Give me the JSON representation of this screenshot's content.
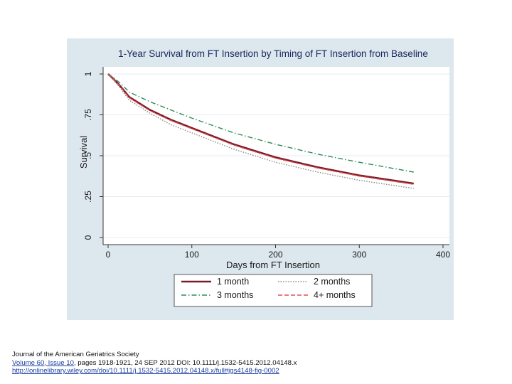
{
  "chart_data": {
    "type": "line",
    "title": "1-Year Survival from FT Insertion by Timing of FT Insertion from Baseline",
    "xlabel": "Days from FT Insertion",
    "ylabel": "Survival",
    "xlim": [
      0,
      400
    ],
    "ylim": [
      0,
      1
    ],
    "xticks": [
      "0",
      "100",
      "200",
      "300",
      "400"
    ],
    "yticks": [
      "0",
      ".25",
      ".5",
      ".75",
      "1"
    ],
    "grid": "horizontal",
    "legend_position": "bottom",
    "x": [
      0,
      25,
      50,
      75,
      100,
      150,
      200,
      250,
      300,
      365
    ],
    "series": [
      {
        "name": "1 month",
        "color": "#7a1a28",
        "style": "solid",
        "values": [
          1.0,
          0.86,
          0.78,
          0.72,
          0.67,
          0.57,
          0.49,
          0.43,
          0.38,
          0.33
        ]
      },
      {
        "name": "2 months",
        "color": "#8a8a8a",
        "style": "dotted",
        "values": [
          1.0,
          0.84,
          0.76,
          0.69,
          0.64,
          0.54,
          0.46,
          0.4,
          0.35,
          0.3
        ]
      },
      {
        "name": "3 months",
        "color": "#2e8b57",
        "style": "dashdot",
        "values": [
          1.0,
          0.89,
          0.83,
          0.78,
          0.73,
          0.64,
          0.57,
          0.51,
          0.46,
          0.4
        ]
      },
      {
        "name": "4+ months",
        "color": "#e25050",
        "style": "dashed",
        "values": [
          1.0,
          0.855,
          0.775,
          0.715,
          0.665,
          0.565,
          0.485,
          0.425,
          0.375,
          0.325
        ]
      }
    ]
  },
  "caption": {
    "journal": "Journal of the American Geriatrics Society",
    "volume_link": "Volume 60, Issue 10,",
    "citation": " pages 1918-1921, 24 SEP 2012 DOI: 10.1111/j.1532-5415.2012.04148.x",
    "url": "http://onlinelibrary.wiley.com/doi/10.1111/j.1532-5415.2012.04148.x/full#jgs4148-fig-0002"
  }
}
